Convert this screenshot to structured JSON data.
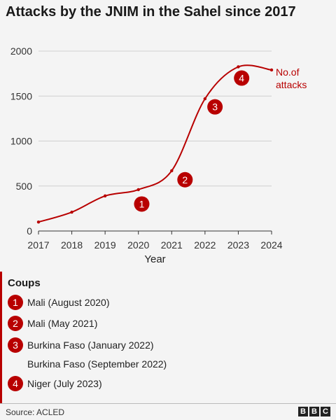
{
  "title": "Attacks by the JNIM in the Sahel since 2017",
  "chart_data": {
    "type": "line",
    "xlabel": "Year",
    "ylabel": "",
    "xlim": [
      2017,
      2024
    ],
    "ylim": [
      0,
      2000
    ],
    "y_ticks": [
      "0",
      "500",
      "1000",
      "1500",
      "2000"
    ],
    "x_ticks": [
      "2017",
      "2018",
      "2019",
      "2020",
      "2021",
      "2022",
      "2023",
      "2024"
    ],
    "grid": "horizontal",
    "series": [
      {
        "name": "No.of attacks",
        "color": "#b80000",
        "x": [
          2017,
          2018,
          2019,
          2020,
          2021,
          2022,
          2023,
          2024
        ],
        "y": [
          100,
          210,
          390,
          460,
          670,
          1470,
          1825,
          1790
        ]
      }
    ],
    "markers": [
      {
        "label": "1",
        "x": 2020.1,
        "y": 300
      },
      {
        "label": "2",
        "x": 2021.4,
        "y": 570
      },
      {
        "label": "3",
        "x": 2022.3,
        "y": 1380
      },
      {
        "label": "4",
        "x": 2023.1,
        "y": 1700
      }
    ]
  },
  "series_label_lines": [
    "No.of",
    "attacks"
  ],
  "coups": {
    "title": "Coups",
    "items": [
      {
        "badge": "1",
        "text": "Mali (August 2020)"
      },
      {
        "badge": "2",
        "text": "Mali (May 2021)"
      },
      {
        "badge": "3",
        "text": "Burkina Faso (January 2022)"
      },
      {
        "badge": "",
        "text": "Burkina Faso (September 2022)"
      },
      {
        "badge": "4",
        "text": "Niger (July 2023)"
      }
    ]
  },
  "source": "Source: ACLED",
  "logo": [
    "B",
    "B",
    "C"
  ]
}
